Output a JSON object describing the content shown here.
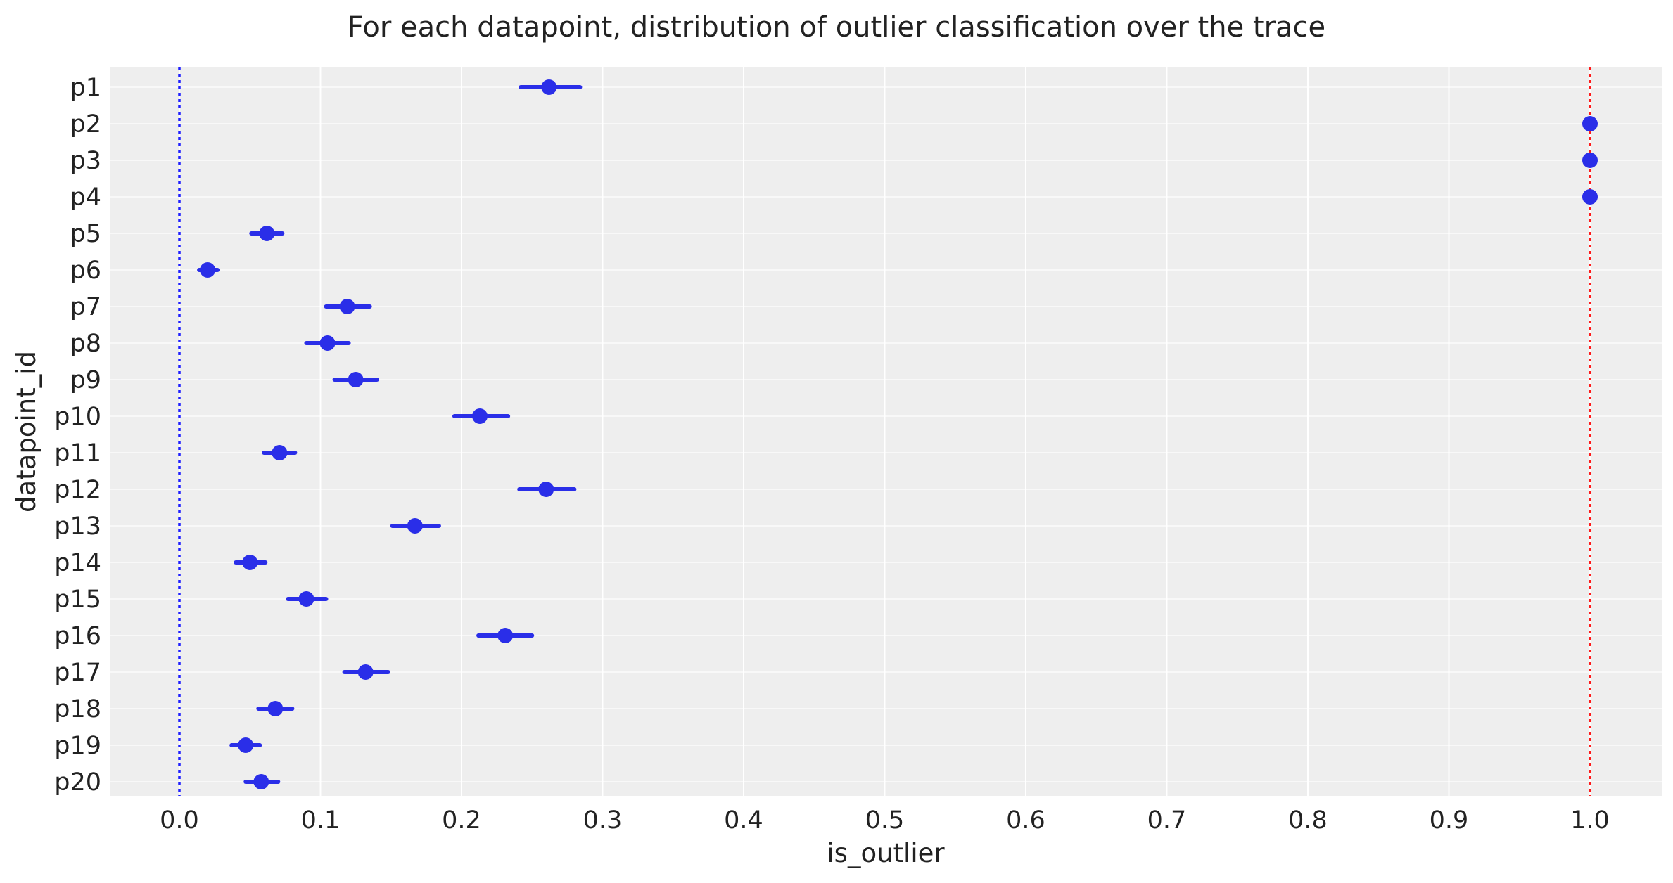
{
  "chart_data": {
    "type": "scatter",
    "title": "For each datapoint, distribution of outlier classification over the trace",
    "xlabel": "is_outlier",
    "ylabel": "datapoint_id",
    "xlim": [
      -0.05,
      1.05
    ],
    "xticks": [
      0.0,
      0.1,
      0.2,
      0.3,
      0.4,
      0.5,
      0.6,
      0.7,
      0.8,
      0.9,
      1.0
    ],
    "xtick_labels": [
      "0.0",
      "0.1",
      "0.2",
      "0.3",
      "0.4",
      "0.5",
      "0.6",
      "0.7",
      "0.8",
      "0.9",
      "1.0"
    ],
    "grid": true,
    "categories": [
      "p1",
      "p2",
      "p3",
      "p4",
      "p5",
      "p6",
      "p7",
      "p8",
      "p9",
      "p10",
      "p11",
      "p12",
      "p13",
      "p14",
      "p15",
      "p16",
      "p17",
      "p18",
      "p19",
      "p20"
    ],
    "points": [
      {
        "id": "p1",
        "mean": 0.262,
        "low": 0.242,
        "high": 0.284
      },
      {
        "id": "p2",
        "mean": 1.0,
        "low": 1.0,
        "high": 1.0
      },
      {
        "id": "p3",
        "mean": 1.0,
        "low": 1.0,
        "high": 1.0
      },
      {
        "id": "p4",
        "mean": 1.0,
        "low": 1.0,
        "high": 1.0
      },
      {
        "id": "p5",
        "mean": 0.062,
        "low": 0.051,
        "high": 0.073
      },
      {
        "id": "p6",
        "mean": 0.02,
        "low": 0.014,
        "high": 0.027
      },
      {
        "id": "p7",
        "mean": 0.119,
        "low": 0.104,
        "high": 0.135
      },
      {
        "id": "p8",
        "mean": 0.105,
        "low": 0.09,
        "high": 0.12
      },
      {
        "id": "p9",
        "mean": 0.125,
        "low": 0.11,
        "high": 0.14
      },
      {
        "id": "p10",
        "mean": 0.213,
        "low": 0.195,
        "high": 0.233
      },
      {
        "id": "p11",
        "mean": 0.071,
        "low": 0.06,
        "high": 0.082
      },
      {
        "id": "p12",
        "mean": 0.26,
        "low": 0.241,
        "high": 0.28
      },
      {
        "id": "p13",
        "mean": 0.167,
        "low": 0.151,
        "high": 0.184
      },
      {
        "id": "p14",
        "mean": 0.05,
        "low": 0.04,
        "high": 0.061
      },
      {
        "id": "p15",
        "mean": 0.09,
        "low": 0.077,
        "high": 0.104
      },
      {
        "id": "p16",
        "mean": 0.231,
        "low": 0.212,
        "high": 0.25
      },
      {
        "id": "p17",
        "mean": 0.132,
        "low": 0.117,
        "high": 0.148
      },
      {
        "id": "p18",
        "mean": 0.068,
        "low": 0.056,
        "high": 0.08
      },
      {
        "id": "p19",
        "mean": 0.047,
        "low": 0.037,
        "high": 0.057
      },
      {
        "id": "p20",
        "mean": 0.058,
        "low": 0.047,
        "high": 0.07
      }
    ],
    "reference_lines": [
      {
        "x": 0.0,
        "color": "#1f1fff",
        "style": "dotted"
      },
      {
        "x": 1.0,
        "color": "#ff1a1a",
        "style": "dotted"
      }
    ],
    "colors": {
      "marker": "#2a2ee8",
      "background": "#eeeeee",
      "grid": "#ffffff"
    }
  }
}
